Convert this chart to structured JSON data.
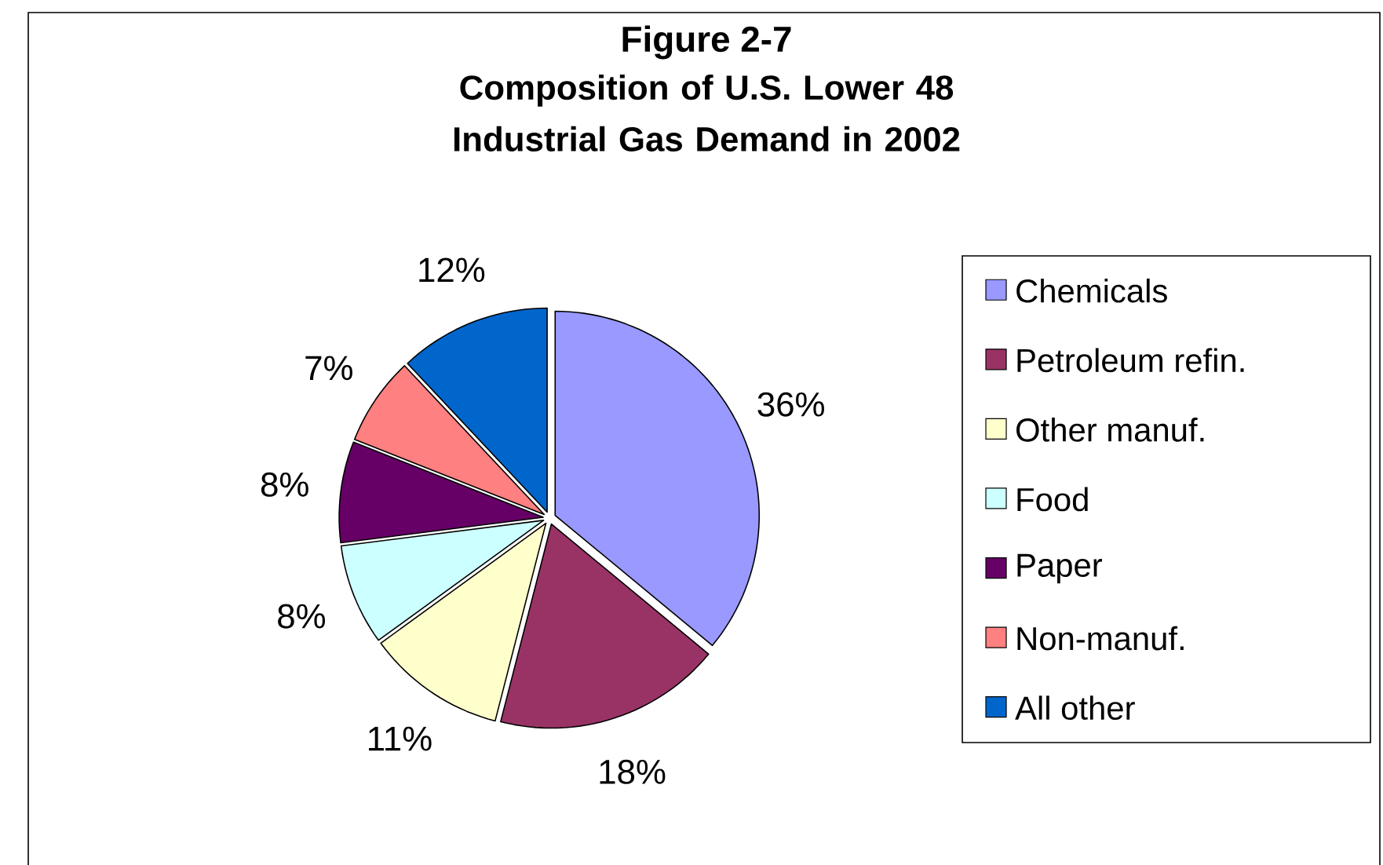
{
  "chart_data": {
    "type": "pie",
    "title": "Figure 2-7",
    "subtitle": "Composition of U.S. Lower 48 Industrial Gas Demand in 2002",
    "categories": [
      "Chemicals",
      "Petroleum refin.",
      "Other manuf.",
      "Food",
      "Paper",
      "Non-manuf.",
      "All other"
    ],
    "values": [
      36,
      18,
      11,
      8,
      8,
      7,
      12
    ],
    "colors": [
      "#9999ff",
      "#993366",
      "#ffffcc",
      "#ccffff",
      "#660066",
      "#ff8080",
      "#0066cc"
    ],
    "value_labels": [
      "36%",
      "18%",
      "11%",
      "8%",
      "8%",
      "7%",
      "12%"
    ],
    "legend": "right"
  }
}
